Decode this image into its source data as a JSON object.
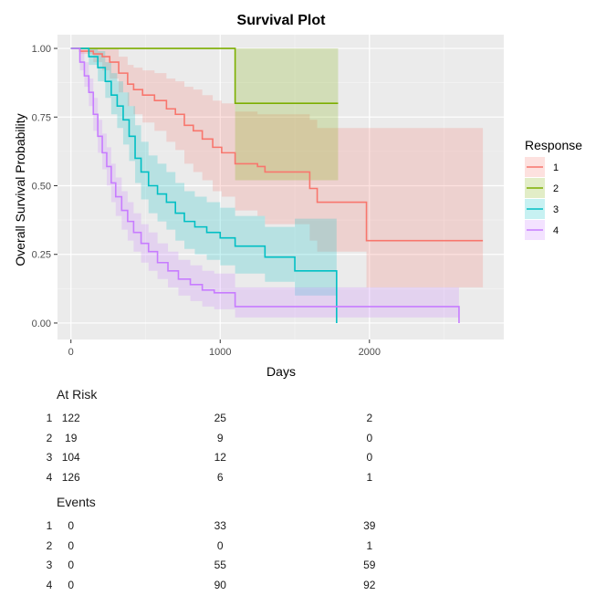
{
  "chart_data": {
    "type": "line",
    "title": "Survival Plot",
    "xlabel": "Days",
    "ylabel": "Overall Survival Probability",
    "xlim": [
      -90,
      2900
    ],
    "ylim": [
      -0.06,
      1.05
    ],
    "xticks": [
      0,
      1000,
      2000
    ],
    "xtick_labels": [
      "0",
      "1000",
      "2000"
    ],
    "yticks": [
      0,
      0.25,
      0.5,
      0.75,
      1
    ],
    "ytick_labels": [
      "0.00",
      "0.25",
      "0.50",
      "0.75",
      "1.00"
    ],
    "grid": true,
    "legend": {
      "title": "Response",
      "position": "right"
    },
    "series": [
      {
        "name": "1",
        "color": "#F8766D",
        "x": [
          0,
          60,
          150,
          210,
          260,
          320,
          380,
          420,
          480,
          560,
          640,
          700,
          760,
          820,
          880,
          950,
          1010,
          1100,
          1250,
          1300,
          1400,
          1600,
          1650,
          1980,
          2760
        ],
        "y": [
          1.0,
          0.99,
          0.98,
          0.97,
          0.95,
          0.91,
          0.87,
          0.85,
          0.83,
          0.81,
          0.78,
          0.76,
          0.72,
          0.7,
          0.67,
          0.64,
          0.62,
          0.58,
          0.57,
          0.55,
          0.55,
          0.49,
          0.44,
          0.3,
          0.3
        ],
        "lower": [
          1.0,
          0.98,
          0.95,
          0.92,
          0.89,
          0.84,
          0.79,
          0.76,
          0.73,
          0.7,
          0.66,
          0.63,
          0.58,
          0.55,
          0.52,
          0.48,
          0.46,
          0.41,
          0.39,
          0.36,
          0.36,
          0.3,
          0.26,
          0.13,
          0.13
        ],
        "upper": [
          1.0,
          1.0,
          1.0,
          1.0,
          1.0,
          0.97,
          0.94,
          0.93,
          0.92,
          0.91,
          0.89,
          0.88,
          0.86,
          0.85,
          0.83,
          0.81,
          0.8,
          0.77,
          0.76,
          0.76,
          0.76,
          0.74,
          0.71,
          0.71,
          0.71
        ]
      },
      {
        "name": "2",
        "color": "#7CAE00",
        "x": [
          0,
          1100,
          1790
        ],
        "y": [
          1.0,
          0.8,
          0.8
        ],
        "lower": [
          1.0,
          0.52,
          0.52
        ],
        "upper": [
          1.0,
          1.0,
          1.0
        ]
      },
      {
        "name": "3",
        "color": "#00BFC4",
        "x": [
          0,
          120,
          180,
          230,
          270,
          310,
          350,
          390,
          430,
          470,
          520,
          580,
          640,
          700,
          760,
          830,
          910,
          1000,
          1100,
          1300,
          1500,
          1780
        ],
        "y": [
          1.0,
          0.97,
          0.93,
          0.88,
          0.83,
          0.79,
          0.74,
          0.68,
          0.6,
          0.55,
          0.5,
          0.47,
          0.44,
          0.4,
          0.37,
          0.35,
          0.33,
          0.31,
          0.28,
          0.24,
          0.19,
          0.0
        ],
        "lower": [
          1.0,
          0.94,
          0.88,
          0.82,
          0.76,
          0.71,
          0.65,
          0.59,
          0.51,
          0.45,
          0.4,
          0.37,
          0.34,
          0.3,
          0.27,
          0.25,
          0.23,
          0.21,
          0.18,
          0.15,
          0.1,
          0.1
        ],
        "upper": [
          1.0,
          1.0,
          0.99,
          0.95,
          0.91,
          0.88,
          0.84,
          0.79,
          0.72,
          0.66,
          0.61,
          0.58,
          0.55,
          0.51,
          0.48,
          0.46,
          0.44,
          0.42,
          0.39,
          0.35,
          0.38,
          0.38
        ]
      },
      {
        "name": "4",
        "color": "#C77CFF",
        "x": [
          0,
          60,
          90,
          120,
          150,
          180,
          210,
          240,
          270,
          300,
          340,
          380,
          420,
          470,
          520,
          580,
          650,
          720,
          800,
          880,
          960,
          1100,
          2600
        ],
        "y": [
          1.0,
          0.95,
          0.9,
          0.84,
          0.76,
          0.68,
          0.62,
          0.57,
          0.51,
          0.46,
          0.41,
          0.37,
          0.33,
          0.29,
          0.26,
          0.22,
          0.19,
          0.16,
          0.14,
          0.12,
          0.11,
          0.06,
          0.0
        ],
        "lower": [
          1.0,
          0.92,
          0.86,
          0.79,
          0.7,
          0.62,
          0.56,
          0.5,
          0.44,
          0.39,
          0.34,
          0.3,
          0.26,
          0.22,
          0.19,
          0.16,
          0.13,
          0.1,
          0.08,
          0.06,
          0.05,
          0.02,
          0.02
        ],
        "upper": [
          1.0,
          0.99,
          0.95,
          0.89,
          0.82,
          0.74,
          0.69,
          0.64,
          0.58,
          0.53,
          0.48,
          0.44,
          0.4,
          0.36,
          0.33,
          0.29,
          0.26,
          0.23,
          0.21,
          0.19,
          0.18,
          0.13,
          0.13
        ]
      }
    ],
    "at_risk": {
      "title": "At Risk",
      "times": [
        0,
        1000,
        2000
      ],
      "rows": [
        {
          "label": "1",
          "values": [
            "122",
            "25",
            "2"
          ]
        },
        {
          "label": "2",
          "values": [
            "19",
            "9",
            "0"
          ]
        },
        {
          "label": "3",
          "values": [
            "104",
            "12",
            "0"
          ]
        },
        {
          "label": "4",
          "values": [
            "126",
            "6",
            "1"
          ]
        }
      ]
    },
    "events": {
      "title": "Events",
      "times": [
        0,
        1000,
        2000
      ],
      "rows": [
        {
          "label": "1",
          "values": [
            "0",
            "33",
            "39"
          ]
        },
        {
          "label": "2",
          "values": [
            "0",
            "0",
            "1"
          ]
        },
        {
          "label": "3",
          "values": [
            "0",
            "55",
            "59"
          ]
        },
        {
          "label": "4",
          "values": [
            "0",
            "90",
            "92"
          ]
        }
      ]
    }
  }
}
